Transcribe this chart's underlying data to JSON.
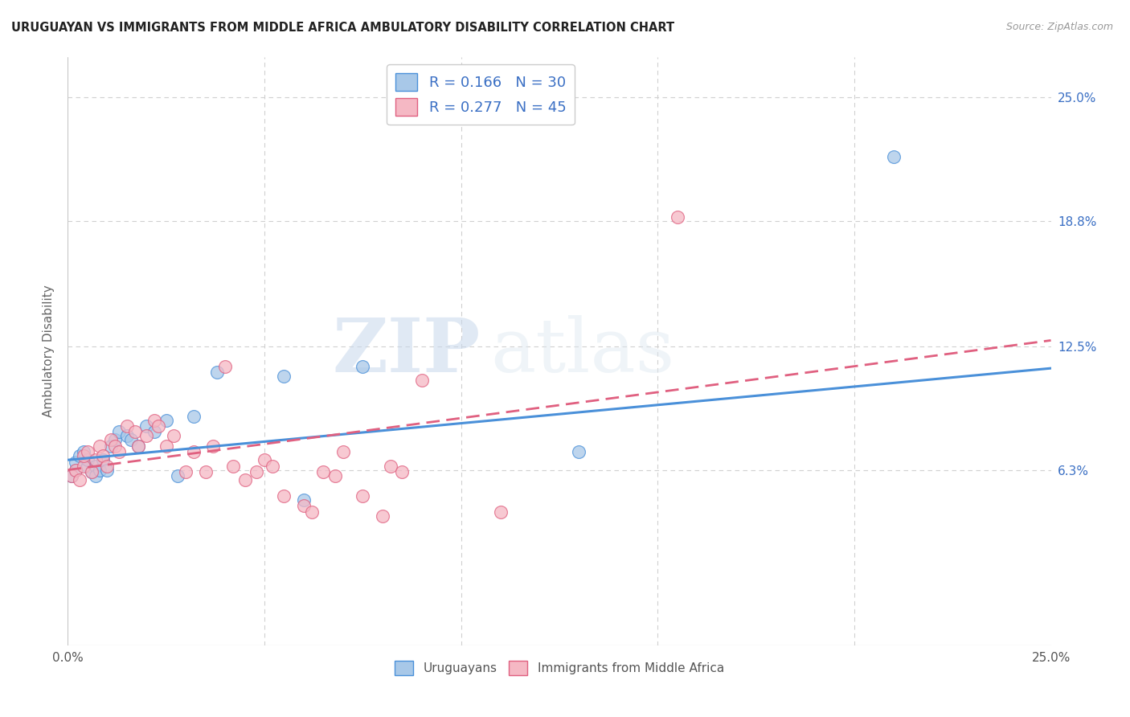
{
  "title": "URUGUAYAN VS IMMIGRANTS FROM MIDDLE AFRICA AMBULATORY DISABILITY CORRELATION CHART",
  "source": "Source: ZipAtlas.com",
  "ylabel": "Ambulatory Disability",
  "xlim": [
    0.0,
    0.25
  ],
  "ylim": [
    -0.025,
    0.27
  ],
  "xticks": [
    0.0,
    0.05,
    0.1,
    0.15,
    0.2,
    0.25
  ],
  "xtick_labels": [
    "0.0%",
    "",
    "",
    "",
    "",
    "25.0%"
  ],
  "ytick_vals_right": [
    0.25,
    0.188,
    0.125,
    0.063
  ],
  "ytick_labels_right": [
    "25.0%",
    "18.8%",
    "12.5%",
    "6.3%"
  ],
  "grid_color": "#d0d0d0",
  "background_color": "#ffffff",
  "blue_color": "#a8c8e8",
  "pink_color": "#f5b8c4",
  "blue_line_color": "#4a90d9",
  "pink_line_color": "#e06080",
  "r_blue": 0.166,
  "n_blue": 30,
  "r_pink": 0.277,
  "n_pink": 45,
  "label_color": "#3a6fc4",
  "watermark_zip": "ZIP",
  "watermark_atlas": "atlas",
  "legend_label_blue": "Uruguayans",
  "legend_label_pink": "Immigrants from Middle Africa",
  "blue_trend_x": [
    0.0,
    0.25
  ],
  "blue_trend_y": [
    0.068,
    0.114
  ],
  "pink_trend_x": [
    0.0,
    0.25
  ],
  "pink_trend_y": [
    0.063,
    0.128
  ],
  "blue_x": [
    0.001,
    0.002,
    0.002,
    0.003,
    0.004,
    0.005,
    0.005,
    0.006,
    0.007,
    0.007,
    0.008,
    0.009,
    0.01,
    0.011,
    0.012,
    0.013,
    0.015,
    0.016,
    0.018,
    0.02,
    0.022,
    0.025,
    0.028,
    0.032,
    0.038,
    0.055,
    0.06,
    0.075,
    0.13,
    0.21
  ],
  "blue_y": [
    0.06,
    0.063,
    0.067,
    0.07,
    0.072,
    0.065,
    0.068,
    0.062,
    0.065,
    0.06,
    0.063,
    0.068,
    0.063,
    0.075,
    0.078,
    0.082,
    0.08,
    0.078,
    0.075,
    0.085,
    0.082,
    0.088,
    0.06,
    0.09,
    0.112,
    0.11,
    0.048,
    0.115,
    0.072,
    0.22
  ],
  "pink_x": [
    0.001,
    0.002,
    0.003,
    0.004,
    0.004,
    0.005,
    0.006,
    0.007,
    0.008,
    0.009,
    0.01,
    0.011,
    0.012,
    0.013,
    0.015,
    0.017,
    0.018,
    0.02,
    0.022,
    0.023,
    0.025,
    0.027,
    0.03,
    0.032,
    0.035,
    0.037,
    0.04,
    0.042,
    0.045,
    0.048,
    0.05,
    0.052,
    0.055,
    0.06,
    0.062,
    0.065,
    0.068,
    0.07,
    0.075,
    0.08,
    0.082,
    0.085,
    0.09,
    0.11,
    0.155
  ],
  "pink_y": [
    0.06,
    0.063,
    0.058,
    0.065,
    0.07,
    0.072,
    0.062,
    0.068,
    0.075,
    0.07,
    0.065,
    0.078,
    0.075,
    0.072,
    0.085,
    0.082,
    0.075,
    0.08,
    0.088,
    0.085,
    0.075,
    0.08,
    0.062,
    0.072,
    0.062,
    0.075,
    0.115,
    0.065,
    0.058,
    0.062,
    0.068,
    0.065,
    0.05,
    0.045,
    0.042,
    0.062,
    0.06,
    0.072,
    0.05,
    0.04,
    0.065,
    0.062,
    0.108,
    0.042,
    0.19
  ]
}
